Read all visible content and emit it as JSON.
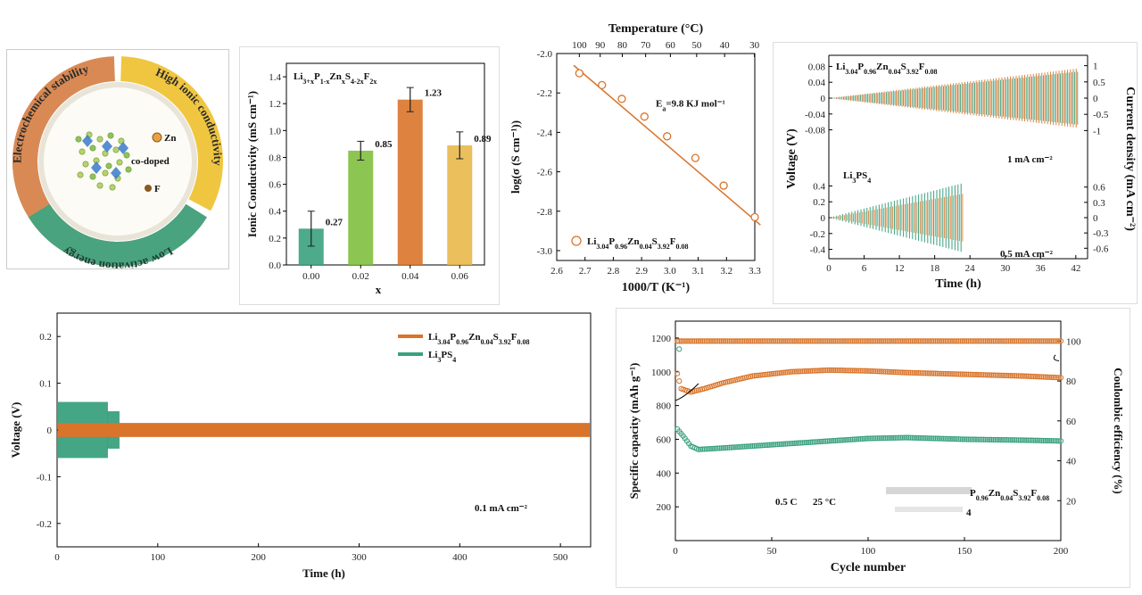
{
  "colors": {
    "green": "#3aa17e",
    "orange": "#d9742a",
    "light_green": "#7fbf3f",
    "gold": "#e8b84a",
    "ring_top_left": "#d98a54",
    "ring_top_right": "#f0c641",
    "ring_bottom": "#4aa37f"
  },
  "schematic": {
    "ring_labels": [
      "Electrochemical stability",
      "High ionic conductivity",
      "Low activation energy"
    ],
    "center_label": "co-doped",
    "dopants": [
      "Zn",
      "F"
    ]
  },
  "chart_data": [
    {
      "id": "conductivity_bar",
      "type": "bar",
      "legend": {
        "base": "Li",
        "sub1": "3+x",
        "p": "P",
        "sub2": "1-x",
        "zn": "Zn",
        "sub3": "x",
        "s": "S",
        "sub4": "4-2x",
        "f": "F",
        "sub5": "2x"
      },
      "categories": [
        "0.00",
        "0.02",
        "0.04",
        "0.06"
      ],
      "values": [
        0.27,
        0.85,
        1.23,
        0.89
      ],
      "errors": [
        0.13,
        0.07,
        0.09,
        0.1
      ],
      "value_labels": [
        "0.27",
        "0.85",
        "1.23",
        "0.89"
      ],
      "xlabel": "x",
      "ylabel": "Ionic Conductivity (mS cm⁻¹)",
      "ylim": [
        0,
        1.5
      ],
      "yticks": [
        "0.0",
        "0.2",
        "0.4",
        "0.6",
        "0.8",
        "1.0",
        "1.2",
        "1.4"
      ]
    },
    {
      "id": "arrhenius",
      "type": "scatter",
      "x": [
        2.68,
        2.76,
        2.83,
        2.91,
        2.99,
        3.09,
        3.19,
        3.3
      ],
      "y": [
        -2.1,
        -2.16,
        -2.23,
        -2.32,
        -2.42,
        -2.53,
        -2.67,
        -2.83
      ],
      "fit": {
        "x": [
          2.66,
          3.32
        ],
        "y": [
          -2.06,
          -2.87
        ]
      },
      "xlabel": "1000/T (K⁻¹)",
      "ylabel": "log(σ (S cm⁻¹))",
      "top_axis_label": "Temperature (°C)",
      "top_ticks": [
        "100",
        "90",
        "80",
        "70",
        "60",
        "50",
        "40",
        "30"
      ],
      "xlim": [
        2.6,
        3.3
      ],
      "ylim": [
        -3.05,
        -2.0
      ],
      "xticks": [
        "2.6",
        "2.7",
        "2.8",
        "2.9",
        "3.0",
        "3.1",
        "3.2",
        "3.3"
      ],
      "yticks": [
        "-2.0",
        "-2.2",
        "-2.4",
        "-2.6",
        "-2.8",
        "-3.0"
      ],
      "ea_label": "E",
      "ea_sub": "a",
      "ea_value": "=9.8 KJ mol⁻¹",
      "legend": "Li3.04P0.96Zn0.04S3.92F0.08"
    },
    {
      "id": "cct",
      "type": "line",
      "xlabel": "Time (h)",
      "xticks": [
        "0",
        "6",
        "12",
        "18",
        "24",
        "30",
        "36",
        "42"
      ],
      "left_label": "Voltage (V)",
      "right_label": "Current density (mA cm⁻²)",
      "top_yticks": [
        "0.08",
        "0.04",
        "0",
        "-0.04",
        "-0.08"
      ],
      "top_right_ticks": [
        "1",
        "0.5",
        "0",
        "-0.5",
        "-1"
      ],
      "bottom_yticks": [
        "0.4",
        "0.2",
        "0",
        "-0.2",
        "-0.4"
      ],
      "bottom_right_ticks": [
        "0.6",
        "0.3",
        "0",
        "-0.3",
        "-0.6"
      ],
      "top_series": "Li3.04P0.96Zn0.04S3.92F0.08",
      "top_end_time_h": 42.5,
      "top_max_voltage": 0.075,
      "bottom_series": "Li3PS4",
      "bottom_end_time_h": 22.5,
      "bottom_max_voltage": 0.43,
      "annotation_top": "1 mA cm⁻²",
      "annotation_bottom": "0.5 mA cm⁻²"
    },
    {
      "id": "cycling",
      "type": "line",
      "xlabel": "Time (h)",
      "ylabel": "Voltage (V)",
      "xlim": [
        0,
        530
      ],
      "ylim": [
        -0.25,
        0.25
      ],
      "xticks": [
        "0",
        "100",
        "200",
        "300",
        "400",
        "500"
      ],
      "yticks": [
        "0.2",
        "0.1",
        "0",
        "-0.1",
        "-0.2"
      ],
      "series": [
        {
          "name": "Li3.04P0.96Zn0.04S3.92F0.08",
          "end_h": 530,
          "amplitude_v": 0.015
        },
        {
          "name": "Li3PS4",
          "end_h": 62,
          "amplitude_v": 0.06
        }
      ],
      "annotation": "0.1 mA cm⁻²"
    },
    {
      "id": "battery",
      "type": "scatter",
      "xlabel": "Cycle number",
      "ylabel_left": "Specific capacity (mAh g⁻¹)",
      "ylabel_right": "Coulombic efficiency (%)",
      "xlim": [
        0,
        200
      ],
      "ylim_left": [
        0,
        1300
      ],
      "ylim_right": [
        0,
        110
      ],
      "xticks": [
        "0",
        "50",
        "100",
        "150",
        "200"
      ],
      "yticks_left": [
        "200",
        "400",
        "600",
        "800",
        "1000",
        "1200"
      ],
      "yticks_right": [
        "20",
        "40",
        "60",
        "80",
        "100"
      ],
      "orange_capacity": {
        "x": [
          1,
          3,
          8,
          15,
          25,
          40,
          60,
          80,
          100,
          120,
          150,
          180,
          200
        ],
        "y": [
          990,
          900,
          880,
          900,
          935,
          975,
          1000,
          1010,
          1005,
          995,
          985,
          975,
          965
        ]
      },
      "green_capacity": {
        "x": [
          1,
          4,
          8,
          12,
          20,
          40,
          60,
          80,
          100,
          120,
          150,
          180,
          200
        ],
        "y": [
          660,
          620,
          560,
          540,
          545,
          560,
          575,
          590,
          605,
          610,
          600,
          595,
          590
        ]
      },
      "ce_percent": 100,
      "condition_rate": "0.5 C",
      "condition_temp": "25 °C",
      "legend_partial": "P0.96Zn0.04S3.92F0.08",
      "legend_partial2": "4"
    }
  ]
}
